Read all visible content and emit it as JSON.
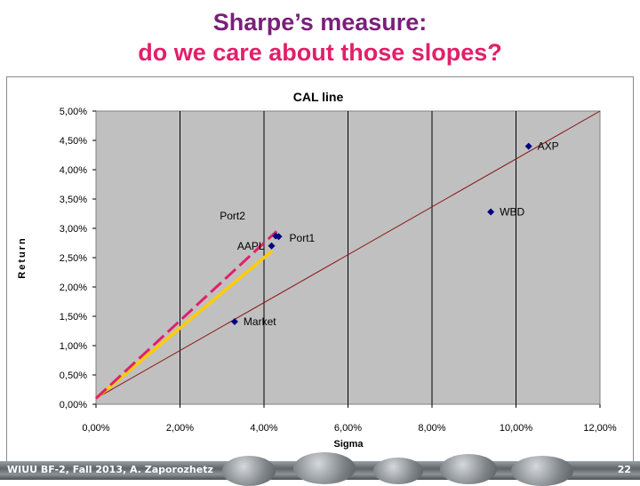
{
  "slide": {
    "title_line1": "Sharpe’s measure:",
    "title_line2": "do we care about those slopes?"
  },
  "footer": {
    "left": "WIUU BF-2, Fall 2013, A. Zaporozhetz",
    "page": "22"
  },
  "colors": {
    "title1": "#7a1f7a",
    "title2": "#e0206a",
    "plot_bg": "#c0c0c0",
    "cal_line": "#8b1a1a",
    "port1_line": "#ffcc00",
    "port2_line": "#e0206a",
    "points": "#000080"
  },
  "chart_data": {
    "type": "scatter",
    "title": "CAL line",
    "xlabel": "Sigma",
    "ylabel": "Return",
    "xlim": [
      0,
      0.12
    ],
    "ylim": [
      0,
      0.05
    ],
    "x_ticks": [
      "0,00%",
      "2,00%",
      "4,00%",
      "6,00%",
      "8,00%",
      "10,00%",
      "12,00%"
    ],
    "y_ticks": [
      "0,00%",
      "0,50%",
      "1,00%",
      "1,50%",
      "2,00%",
      "2,50%",
      "3,00%",
      "3,50%",
      "4,00%",
      "4,50%",
      "5,00%"
    ],
    "grid": "vertical",
    "points": [
      {
        "label": "AXP",
        "x": 0.103,
        "y": 0.044
      },
      {
        "label": "WBD",
        "x": 0.094,
        "y": 0.0328
      },
      {
        "label": "Port1",
        "x": 0.0435,
        "y": 0.0286
      },
      {
        "label": "",
        "x": 0.0428,
        "y": 0.0287
      },
      {
        "label": "AAPL",
        "x": 0.0418,
        "y": 0.027
      },
      {
        "label": "Market",
        "x": 0.033,
        "y": 0.0141
      }
    ],
    "lines": [
      {
        "name": "CAL",
        "style": "solid",
        "x": [
          0.0,
          0.12
        ],
        "y": [
          0.001,
          0.05
        ]
      },
      {
        "name": "Port1",
        "style": "solid",
        "x": [
          0.0,
          0.042
        ],
        "y": [
          0.001,
          0.0262
        ]
      },
      {
        "name": "Port2",
        "style": "dashed",
        "x": [
          0.0,
          0.043
        ],
        "y": [
          0.001,
          0.0295
        ]
      }
    ],
    "annotations": [
      {
        "text": "Port2",
        "x": 0.0325,
        "y": 0.0315
      }
    ]
  }
}
